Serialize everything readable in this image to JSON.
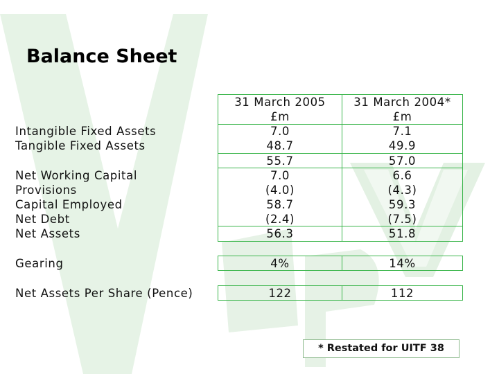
{
  "title": "Balance Sheet",
  "columns": [
    {
      "header": "31 March 2005",
      "unit": "£m"
    },
    {
      "header": "31 March 2004*",
      "unit": "£m"
    }
  ],
  "rows": [
    {
      "label": "Intangible Fixed Assets",
      "values": [
        "7.0",
        "7.1"
      ]
    },
    {
      "label": "Tangible Fixed Assets",
      "values": [
        "48.7",
        "49.9"
      ]
    },
    {
      "label": "",
      "values": [
        "55.7",
        "57.0"
      ]
    },
    {
      "label": "Net Working Capital",
      "values": [
        "7.0",
        "6.6"
      ]
    },
    {
      "label": "Provisions",
      "values": [
        "(4.0)",
        "(4.3)"
      ]
    },
    {
      "label": "Capital Employed",
      "values": [
        "58.7",
        "59.3"
      ]
    },
    {
      "label": "Net Debt",
      "values": [
        "(2.4)",
        "(7.5)"
      ]
    },
    {
      "label": "Net Assets",
      "values": [
        "56.3",
        "51.8"
      ]
    }
  ],
  "gearing": {
    "label": "Gearing",
    "values": [
      "4%",
      "14%"
    ]
  },
  "per_share": {
    "label": "Net Assets Per Share (Pence)",
    "values": [
      "122",
      "112"
    ]
  },
  "footnote": "* Restated for UITF 38",
  "colors": {
    "accent": "#39b54a",
    "watermark": "#e3f1e3"
  }
}
